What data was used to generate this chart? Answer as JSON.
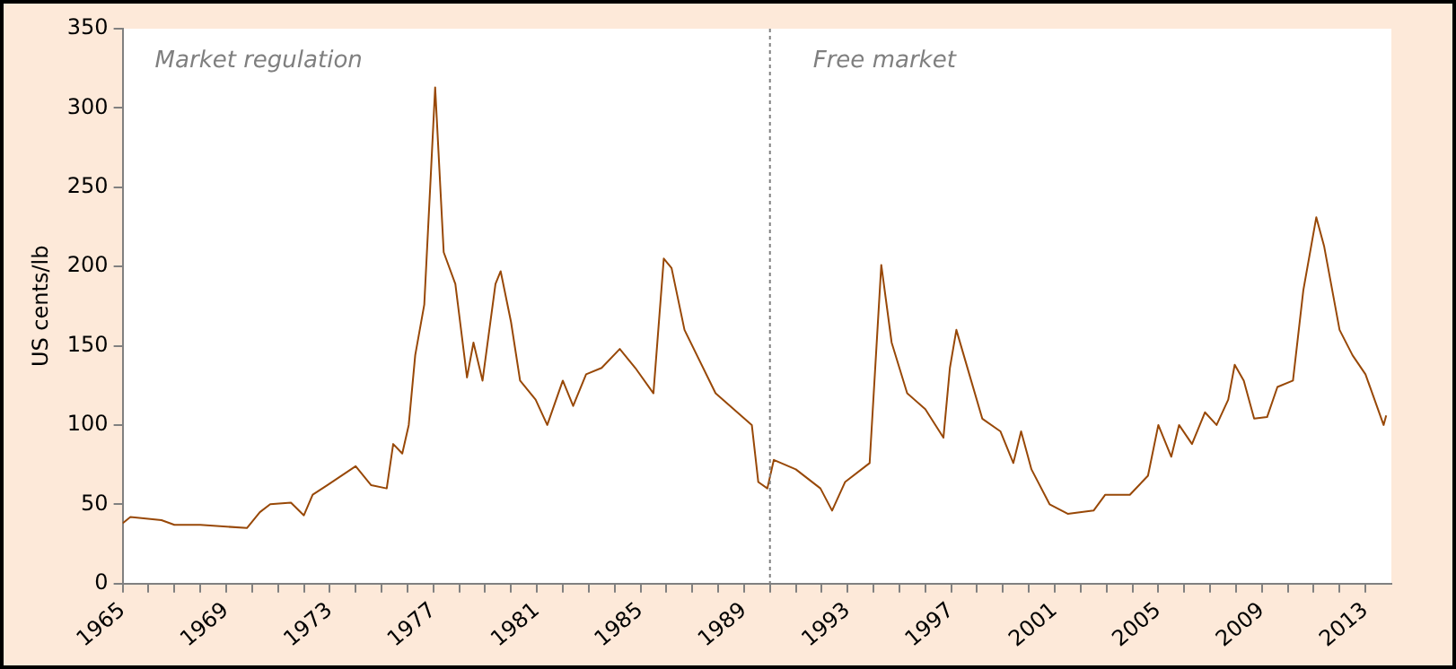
{
  "chart_data": {
    "type": "line",
    "ylabel": "US cents/lb",
    "annotations": [
      "Market regulation",
      "Free market"
    ],
    "x": [
      1965,
      1965.3,
      1966.5,
      1967,
      1968,
      1969.8,
      1970.3,
      1970.7,
      1971.5,
      1972,
      1972.34,
      1972.9,
      1974,
      1974.6,
      1975.2,
      1975.45,
      1975.8,
      1976.05,
      1976.3,
      1976.65,
      1976.9,
      1977.07,
      1977.4,
      1977.85,
      1978.3,
      1978.55,
      1978.9,
      1979.4,
      1979.6,
      1980,
      1980.35,
      1980.95,
      1981.4,
      1982,
      1982.4,
      1982.9,
      1983.5,
      1984.2,
      1984.8,
      1985.5,
      1985.9,
      1986.2,
      1986.7,
      1987.9,
      1989.3,
      1989.55,
      1989.9,
      1990.15,
      1991,
      1991.95,
      1992.4,
      1992.9,
      1993.85,
      1994.3,
      1994.7,
      1995.3,
      1996,
      1996.7,
      1996.95,
      1997.2,
      1997.7,
      1998.2,
      1998.9,
      1999.4,
      1999.7,
      2000.1,
      2000.8,
      2001.5,
      2002.5,
      2002.95,
      2003.9,
      2004.6,
      2005,
      2005.5,
      2005.8,
      2006.3,
      2006.8,
      2007.25,
      2007.7,
      2007.95,
      2008.3,
      2008.7,
      2009.2,
      2009.6,
      2010.2,
      2010.6,
      2011.1,
      2011.4,
      2012,
      2012.5,
      2013,
      2013.7,
      2013.8
    ],
    "series": [
      {
        "color": "#984807",
        "values": [
          38,
          42,
          40,
          37,
          37,
          35,
          45,
          50,
          51,
          43,
          56,
          62,
          74,
          62,
          60,
          88,
          82,
          100,
          144,
          176,
          257,
          313,
          209,
          189,
          130,
          152,
          128,
          189,
          197,
          165,
          128,
          116,
          100,
          128,
          112,
          132,
          136,
          148,
          136,
          120,
          205,
          199,
          160,
          120,
          100,
          64,
          60,
          78,
          72,
          60,
          46,
          64,
          76,
          201,
          152,
          120,
          110,
          92,
          136,
          160,
          132,
          104,
          96,
          76,
          96,
          72,
          50,
          44,
          46,
          56,
          56,
          68,
          100,
          80,
          100,
          88,
          108,
          100,
          116,
          138,
          128,
          104,
          105,
          124,
          128,
          185,
          231,
          213,
          160,
          144,
          132,
          100,
          106
        ]
      }
    ],
    "xlim": [
      1965,
      2014
    ],
    "xticks": [
      1965,
      {
        "value": 1966,
        "label": null
      },
      {
        "value": 1967,
        "label": null
      },
      {
        "value": 1968,
        "label": null
      },
      1969,
      {
        "value": 1970,
        "label": null
      },
      {
        "value": 1971,
        "label": null
      },
      {
        "value": 1972,
        "label": null
      },
      1973,
      {
        "value": 1974,
        "label": null
      },
      {
        "value": 1975,
        "label": null
      },
      {
        "value": 1976,
        "label": null
      },
      1977,
      {
        "value": 1978,
        "label": null
      },
      {
        "value": 1979,
        "label": null
      },
      {
        "value": 1980,
        "label": null
      },
      1981,
      {
        "value": 1982,
        "label": null
      },
      {
        "value": 1983,
        "label": null
      },
      {
        "value": 1984,
        "label": null
      },
      1985,
      {
        "value": 1986,
        "label": null
      },
      {
        "value": 1987,
        "label": null
      },
      {
        "value": 1988,
        "label": null
      },
      1989,
      {
        "value": 1990,
        "label": null
      },
      {
        "value": 1991,
        "label": null
      },
      {
        "value": 1992,
        "label": null
      },
      1993,
      {
        "value": 1994,
        "label": null
      },
      {
        "value": 1995,
        "label": null
      },
      {
        "value": 1996,
        "label": null
      },
      1997,
      {
        "value": 1998,
        "label": null
      },
      {
        "value": 1999,
        "label": null
      },
      {
        "value": 2000,
        "label": null
      },
      2001,
      {
        "value": 2002,
        "label": null
      },
      {
        "value": 2003,
        "label": null
      },
      {
        "value": 2004,
        "label": null
      },
      2005,
      {
        "value": 2006,
        "label": null
      },
      {
        "value": 2007,
        "label": null
      },
      {
        "value": 2008,
        "label": null
      },
      2009,
      {
        "value": 2010,
        "label": null
      },
      {
        "value": 2011,
        "label": null
      },
      {
        "value": 2012,
        "label": null
      },
      2013
    ],
    "ylim": [
      0,
      350
    ],
    "yticks": [
      0,
      50,
      100,
      150,
      200,
      250,
      300,
      350
    ],
    "ref_lines": [
      {
        "axis": "x",
        "value": 1990,
        "color": "#808080",
        "line_style": "dotted"
      }
    ],
    "grid": false,
    "legend": false,
    "marker": "none",
    "line_style": "solid"
  }
}
